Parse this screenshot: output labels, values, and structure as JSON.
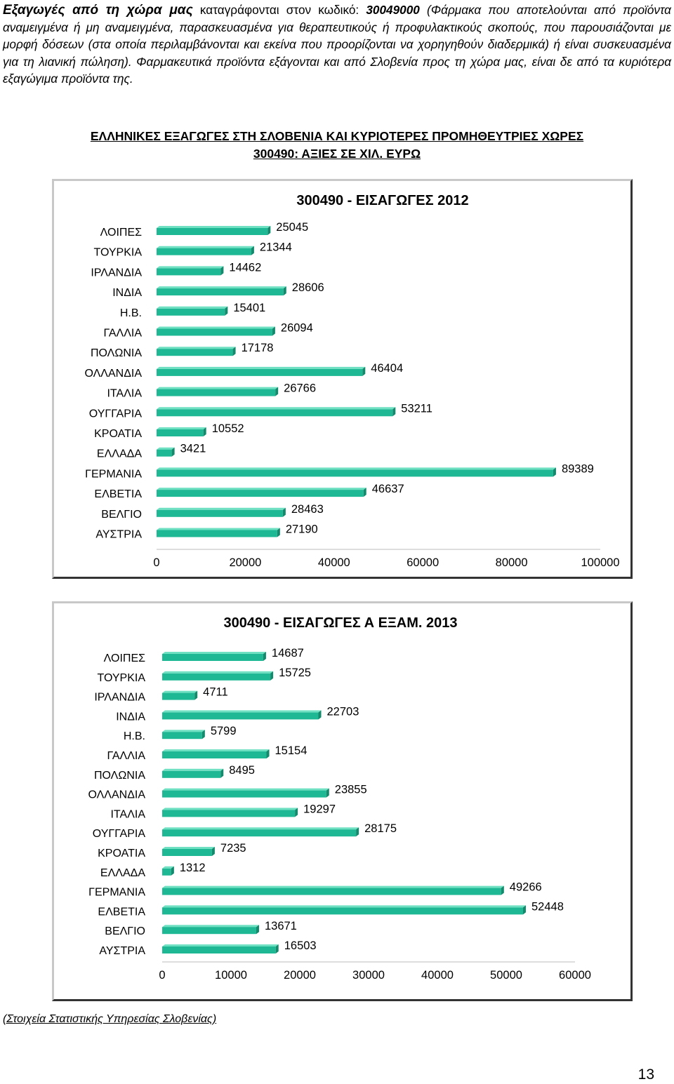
{
  "paragraph": {
    "lead": "Εξαγωγές από τη χώρα μας",
    "text1": " καταγράφονται στον κωδικό: ",
    "code": "30049000",
    "text2": " (Φάρμακα που αποτελούνται από προϊόντα αναμειγμένα ή μη αναμειγμένα, παρασκευασμένα για θεραπευτικούς ή προφυλακτικούς σκοπούς, που παρουσιάζονται με μορφή δόσεων (στα οποία περιλαμβάνονται και εκείνα που προορίζονται να χορηγηθούν διαδερμικά) ή είναι συσκευασμένα για τη λιανική πώληση). Φαρμακευτικά προϊόντα εξάγονται και από Σλοβενία προς τη χώρα μας, είναι δε από τα κυριότερα εξαγώγιμα προϊόντα της."
  },
  "heading": {
    "line1": "ΕΛΛΗΝΙΚΕΣ ΕΞΑΓΩΓΕΣ ΣΤΗ ΣΛΟΒΕΝΙΑ ΚΑΙ ΚΥΡΙΟΤΕΡΕΣ ΠΡΟΜΗΘΕΥΤΡΙΕΣ ΧΩΡΕΣ",
    "line2": "300490: ΑΞΙΕΣ ΣΕ ΧΙΛ. ΕΥΡΩ"
  },
  "chart_data": [
    {
      "type": "bar",
      "title": "300490 - ΕΙΣΑΓΩΓΕΣ 2012",
      "categories": [
        "ΛΟΙΠΕΣ",
        "ΤΟΥΡΚΙΑ",
        "ΙΡΛΑΝΔΙΑ",
        "ΙΝΔΙΑ",
        "Η.Β.",
        "ΓΑΛΛΙΑ",
        "ΠΟΛΩΝΙΑ",
        "ΟΛΛΑΝΔΙΑ",
        "ΙΤΑΛΙΑ",
        "ΟΥΓΓΑΡΙΑ",
        "ΚΡΟΑΤΙΑ",
        "ΕΛΛΑΔΑ",
        "ΓΕΡΜΑΝΙΑ",
        "ΕΛΒΕΤΙΑ",
        "ΒΕΛΓΙΟ",
        "ΑΥΣΤΡΙΑ"
      ],
      "values": [
        25045,
        21344,
        14462,
        28606,
        15401,
        26094,
        17178,
        46404,
        26766,
        53211,
        10552,
        3421,
        89389,
        46637,
        28463,
        27190
      ],
      "xlim": [
        0,
        100000
      ],
      "ticks": [
        "0",
        "20000",
        "40000",
        "60000",
        "80000",
        "100000"
      ],
      "orientation": "horizontal",
      "grid": false,
      "colors": {
        "bar": "#1fb894",
        "bar_top": "#6fe0c2",
        "bar_side": "#138a6c"
      }
    },
    {
      "type": "bar",
      "title": "300490 - ΕΙΣΑΓΩΓΕΣ Α ΕΞΑΜ. 2013",
      "categories": [
        "ΛΟΙΠΕΣ",
        "ΤΟΥΡΚΙΑ",
        "ΙΡΛΑΝΔΙΑ",
        "ΙΝΔΙΑ",
        "Η.Β.",
        "ΓΑΛΛΙΑ",
        "ΠΟΛΩΝΙΑ",
        "ΟΛΛΑΝΔΙΑ",
        "ΙΤΑΛΙΑ",
        "ΟΥΓΓΑΡΙΑ",
        "ΚΡΟΑΤΙΑ",
        "ΕΛΛΑΔΑ",
        "ΓΕΡΜΑΝΙΑ",
        "ΕΛΒΕΤΙΑ",
        "ΒΕΛΓΙΟ",
        "ΑΥΣΤΡΙΑ"
      ],
      "values": [
        14687,
        15725,
        4711,
        22703,
        5799,
        15154,
        8495,
        23855,
        19297,
        28175,
        7235,
        1312,
        49266,
        52448,
        13671,
        16503
      ],
      "xlim": [
        0,
        60000
      ],
      "ticks": [
        "0",
        "10000",
        "20000",
        "30000",
        "40000",
        "50000",
        "60000"
      ],
      "orientation": "horizontal",
      "grid": false,
      "colors": {
        "bar": "#1fb894",
        "bar_top": "#6fe0c2",
        "bar_side": "#138a6c"
      }
    }
  ],
  "source": "(Στοιχεία Στατιστικής Υπηρεσίας Σλοβενίας)",
  "page_number": "13"
}
